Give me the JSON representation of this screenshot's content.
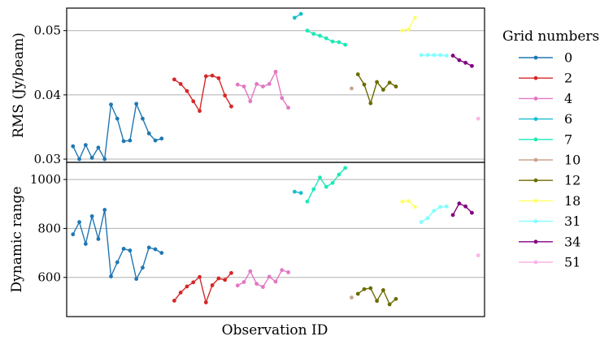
{
  "chart_data": {
    "type": "line",
    "xlabel": "Observation ID",
    "legend": {
      "title": "Grid numbers",
      "placement": "right",
      "entries": [
        {
          "label": "0",
          "color": "#1f77b4"
        },
        {
          "label": "2",
          "color": "#d62728"
        },
        {
          "label": "4",
          "color": "#e377c2"
        },
        {
          "label": "6",
          "color": "#17becf"
        },
        {
          "label": "7",
          "color": "#1de9b6"
        },
        {
          "label": "10",
          "color": "#c9a391"
        },
        {
          "label": "12",
          "color": "#6b6b00"
        },
        {
          "label": "18",
          "color": "#ffff66"
        },
        {
          "label": "31",
          "color": "#80ffff"
        },
        {
          "label": "34",
          "color": "#800080"
        },
        {
          "label": "51",
          "color": "#ffb3e6"
        }
      ]
    },
    "panels": [
      {
        "ylabel": "RMS (Jy/beam)",
        "ylim": [
          0.0295,
          0.0535
        ],
        "yticks": [
          0.03,
          0.04,
          0.05
        ],
        "ytick_labels": [
          "0.03",
          "0.04",
          "0.05"
        ],
        "grid": true,
        "series": [
          {
            "color": "#1f77b4",
            "x": [
              1,
              2,
              3,
              4,
              5,
              6,
              7,
              8,
              9,
              10,
              11,
              12,
              13,
              14,
              15
            ],
            "y": [
              0.032,
              0.03,
              0.0322,
              0.0302,
              0.0318,
              0.03,
              0.0385,
              0.0363,
              0.0328,
              0.0329,
              0.0386,
              0.0363,
              0.034,
              0.0329,
              0.0332
            ]
          },
          {
            "color": "#d62728",
            "x": [
              17,
              18,
              19,
              20,
              21,
              22,
              23,
              24,
              25,
              26
            ],
            "y": [
              0.0424,
              0.0417,
              0.0406,
              0.039,
              0.0375,
              0.0429,
              0.043,
              0.0426,
              0.0399,
              0.0382
            ]
          },
          {
            "color": "#e377c2",
            "x": [
              27,
              28,
              29,
              30,
              31,
              32,
              33,
              34,
              35
            ],
            "y": [
              0.0416,
              0.0413,
              0.039,
              0.0417,
              0.0413,
              0.0417,
              0.0436,
              0.0395,
              0.038
            ]
          },
          {
            "color": "#17becf",
            "x": [
              36,
              37
            ],
            "y": [
              0.052,
              0.0526
            ]
          },
          {
            "color": "#1de9b6",
            "x": [
              38,
              39,
              40,
              41,
              42,
              43,
              44
            ],
            "y": [
              0.05,
              0.0495,
              0.0492,
              0.0488,
              0.0483,
              0.0482,
              0.0478
            ]
          },
          {
            "color": "#c9a391",
            "x": [
              45
            ],
            "y": [
              0.041
            ]
          },
          {
            "color": "#6b6b00",
            "x": [
              46,
              47,
              48,
              49,
              50,
              51,
              52
            ],
            "y": [
              0.0432,
              0.0416,
              0.0387,
              0.042,
              0.0408,
              0.0419,
              0.0413
            ]
          },
          {
            "color": "#ffff66",
            "x": [
              53,
              54,
              55
            ],
            "y": [
              0.05,
              0.0502,
              0.052
            ]
          },
          {
            "color": "#80ffff",
            "x": [
              56,
              57,
              58,
              59,
              60
            ],
            "y": [
              0.0462,
              0.0462,
              0.0462,
              0.0462,
              0.0461
            ]
          },
          {
            "color": "#800080",
            "x": [
              61,
              62,
              63,
              64
            ],
            "y": [
              0.0461,
              0.0454,
              0.045,
              0.0445
            ]
          },
          {
            "color": "#ffb3e6",
            "x": [
              65
            ],
            "y": [
              0.0363
            ]
          }
        ]
      },
      {
        "ylabel": "Dynamic range",
        "ylim": [
          440,
          1070
        ],
        "yticks": [
          600,
          800,
          1000
        ],
        "ytick_labels": [
          "600",
          "800",
          "1000"
        ],
        "grid": true,
        "series": [
          {
            "color": "#1f77b4",
            "x": [
              1,
              2,
              3,
              4,
              5,
              6,
              7,
              8,
              9,
              10,
              11,
              12,
              13,
              14,
              15
            ],
            "y": [
              776,
              826,
              737,
              850,
              757,
              876,
              604,
              662,
              717,
              710,
              594,
              640,
              722,
              715,
              700
            ]
          },
          {
            "color": "#d62728",
            "x": [
              17,
              18,
              19,
              20,
              21,
              22,
              23,
              24,
              25,
              26
            ],
            "y": [
              505,
              538,
              563,
              580,
              602,
              498,
              568,
              596,
              590,
              618
            ]
          },
          {
            "color": "#e377c2",
            "x": [
              27,
              28,
              29,
              30,
              31,
              32,
              33,
              34,
              35
            ],
            "y": [
              567,
              581,
              625,
              574,
              561,
              603,
              583,
              630,
              621
            ]
          },
          {
            "color": "#17becf",
            "x": [
              36,
              37
            ],
            "y": [
              950,
              945
            ]
          },
          {
            "color": "#1de9b6",
            "x": [
              38,
              39,
              40,
              41,
              42,
              43,
              44
            ],
            "y": [
              910,
              960,
              1008,
              970,
              986,
              1020,
              1047
            ]
          },
          {
            "color": "#c9a391",
            "x": [
              45
            ],
            "y": [
              518
            ]
          },
          {
            "color": "#6b6b00",
            "x": [
              46,
              47,
              48,
              49,
              50,
              51,
              52
            ],
            "y": [
              533,
              552,
              556,
              504,
              548,
              490,
              512
            ]
          },
          {
            "color": "#ffff66",
            "x": [
              53,
              54,
              55
            ],
            "y": [
              910,
              912,
              888
            ]
          },
          {
            "color": "#80ffff",
            "x": [
              56,
              57,
              58,
              59,
              60
            ],
            "y": [
              826,
              842,
              872,
              888,
              890
            ]
          },
          {
            "color": "#800080",
            "x": [
              61,
              62,
              63,
              64
            ],
            "y": [
              855,
              902,
              890,
              864
            ]
          },
          {
            "color": "#ffb3e6",
            "x": [
              65
            ],
            "y": [
              690
            ]
          }
        ]
      }
    ]
  }
}
